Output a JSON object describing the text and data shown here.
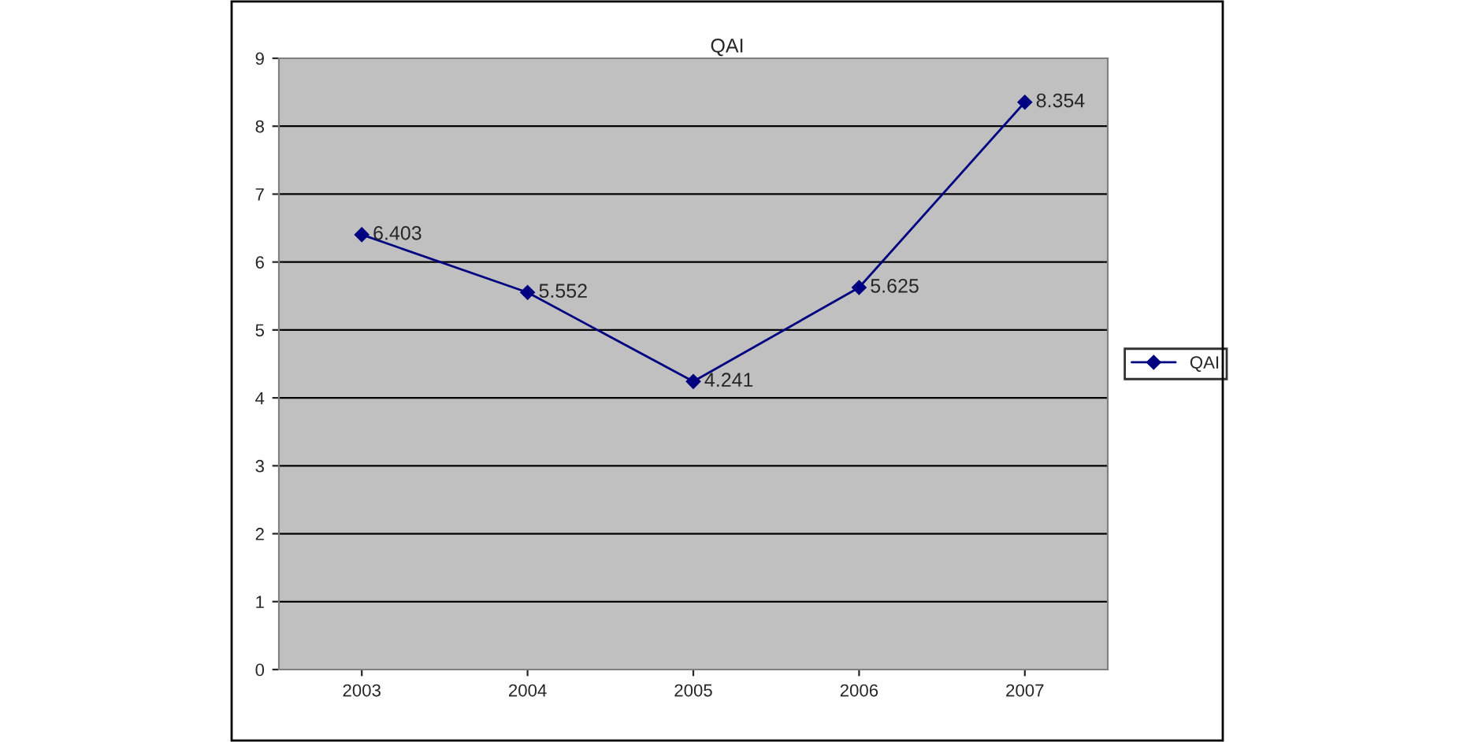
{
  "chart_data": {
    "type": "line",
    "title": "QAI",
    "categories": [
      "2003",
      "2004",
      "2005",
      "2006",
      "2007"
    ],
    "series": [
      {
        "name": "QAI",
        "color": "#000080",
        "values": [
          6.403,
          5.552,
          4.241,
          5.625,
          8.354
        ]
      }
    ],
    "ylim": [
      0,
      9
    ],
    "yticks": [
      0,
      1,
      2,
      3,
      4,
      5,
      6,
      7,
      8,
      9
    ],
    "grid": "y",
    "legend": "right",
    "marker": "diamond",
    "line_style": "solid",
    "data_labels": true
  }
}
